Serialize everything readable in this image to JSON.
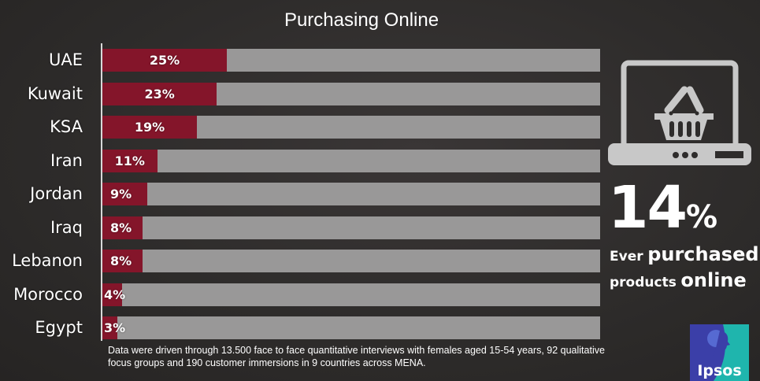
{
  "title": "Purchasing Online",
  "rows": [
    {
      "label": "UAE",
      "value": 25,
      "display": "25%"
    },
    {
      "label": "Kuwait",
      "value": 23,
      "display": "23%"
    },
    {
      "label": "KSA",
      "value": 19,
      "display": "19%"
    },
    {
      "label": "Iran",
      "value": 11,
      "display": "11%"
    },
    {
      "label": "Jordan",
      "value": 9,
      "display": "9%"
    },
    {
      "label": "Iraq",
      "value": 8,
      "display": "8%"
    },
    {
      "label": "Lebanon",
      "value": 8,
      "display": "8%"
    },
    {
      "label": "Morocco",
      "value": 4,
      "display": "4%"
    },
    {
      "label": "Egypt",
      "value": 3,
      "display": "3%"
    }
  ],
  "note": "Data were driven through 13.500 face to face quantitative interviews with females aged 15-54 years,  92 qualitative focus groups and 190 customer immersions in 9 countries across MENA.",
  "highlight": {
    "number": "14",
    "percent_sign": "%",
    "caption_line1_small": "Ever",
    "caption_line1_large": "purchased",
    "caption_line2_small": "products",
    "caption_line2_large": "online",
    "icon": "laptop-shopping-basket-icon"
  },
  "logo": {
    "text": "Ipsos",
    "colors": {
      "left": "#3b3fa8",
      "right": "#1fb5ad"
    }
  },
  "colors": {
    "fill": "#84152a",
    "track": "#999898",
    "background": "#2e2c2b",
    "icon": "#c8c8c8"
  },
  "chart_data": {
    "type": "bar",
    "orientation": "horizontal",
    "title": "Purchasing Online",
    "categories": [
      "UAE",
      "Kuwait",
      "KSA",
      "Iran",
      "Jordan",
      "Iraq",
      "Lebanon",
      "Morocco",
      "Egypt"
    ],
    "values": [
      25,
      23,
      19,
      11,
      9,
      8,
      8,
      4,
      3
    ],
    "unit": "%",
    "xlim": [
      0,
      100
    ],
    "xlabel": "",
    "ylabel": "",
    "grid": false,
    "legend": null,
    "data_labels": [
      "25%",
      "23%",
      "19%",
      "11%",
      "9%",
      "8%",
      "8%",
      "4%",
      "3%"
    ],
    "annotations": [
      "14% Ever purchased products online"
    ]
  }
}
